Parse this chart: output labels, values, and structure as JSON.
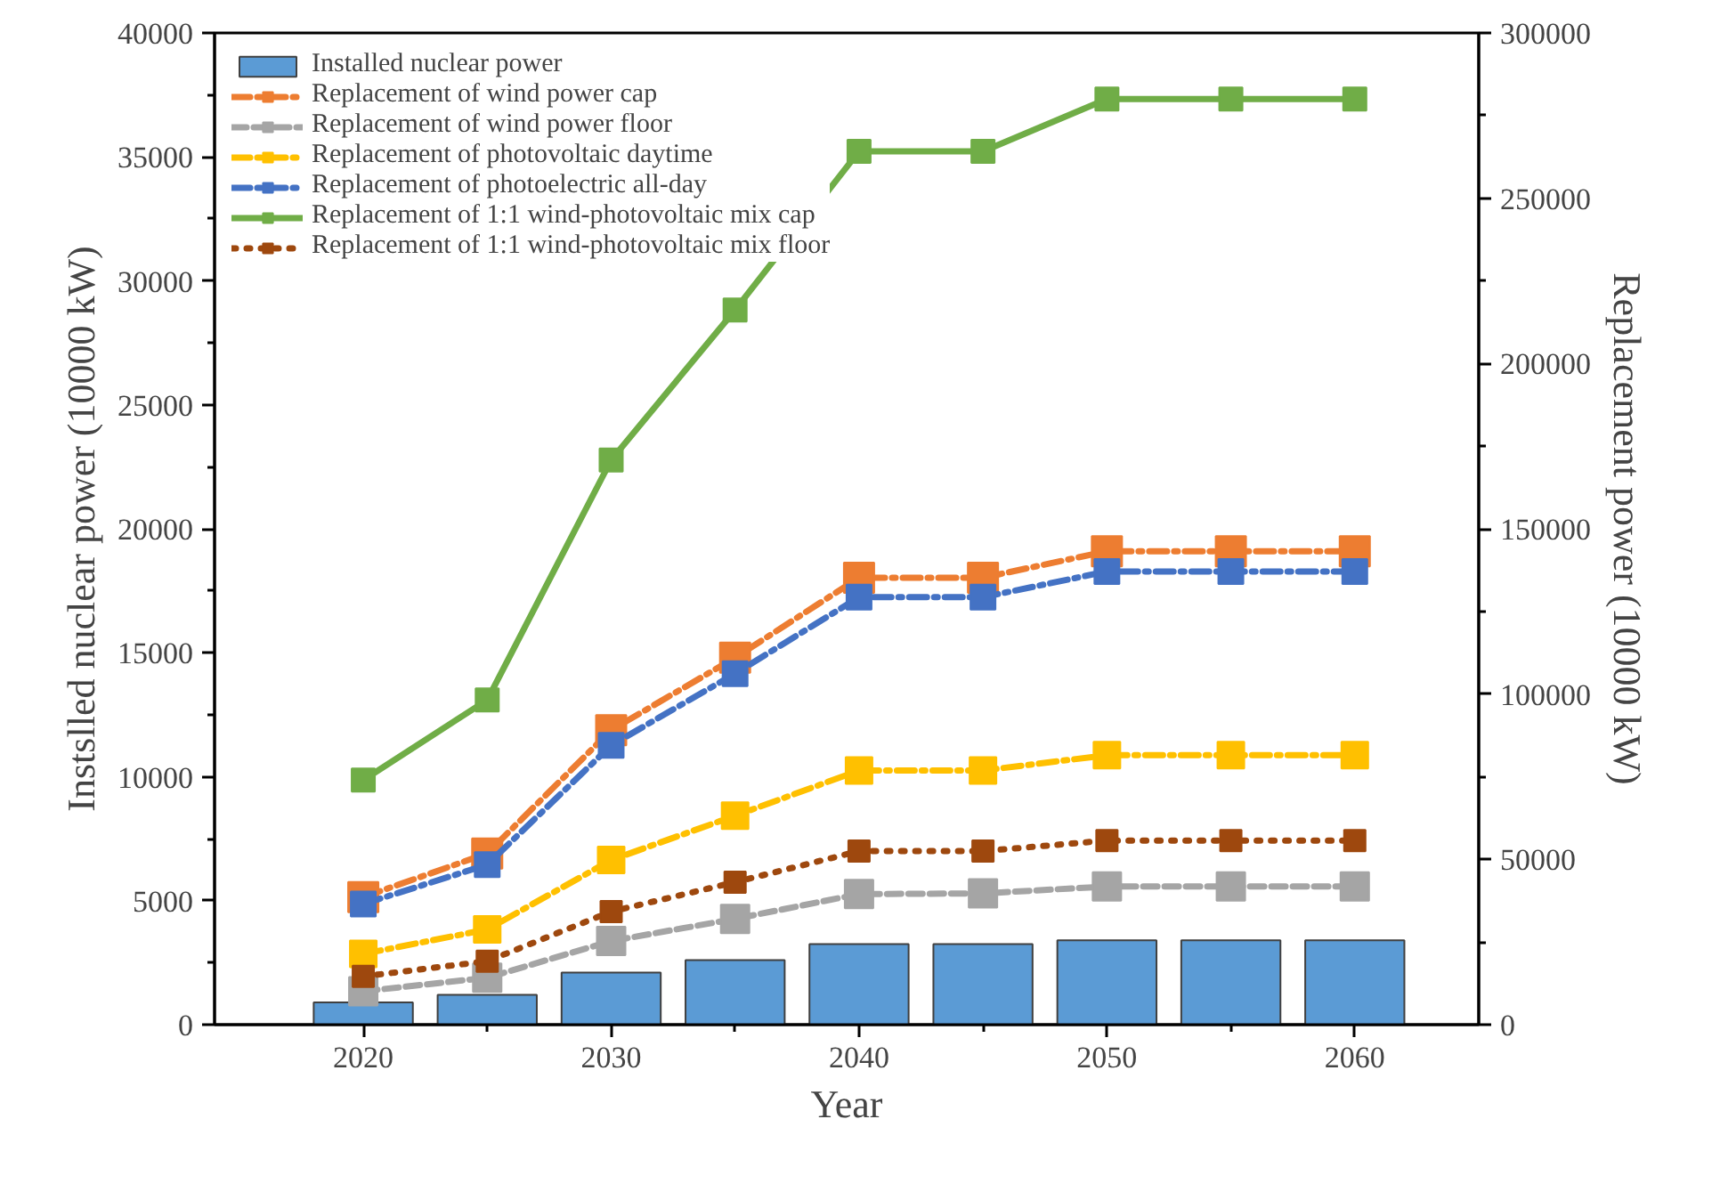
{
  "chart_data": {
    "type": "line",
    "xlabel": "Year",
    "ylabel": "Instslled nuclear power (10000 kW)",
    "y2label": "Replacement power (10000 kW)",
    "x": [
      2020,
      2025,
      2030,
      2035,
      2040,
      2045,
      2050,
      2055,
      2060
    ],
    "xlim": [
      2014,
      2065
    ],
    "xticks": [
      2020,
      {
        "value": 2025,
        "label": null
      },
      2030,
      {
        "value": 2035,
        "label": null
      },
      2040,
      {
        "value": 2045,
        "label": null
      },
      2050,
      {
        "value": 2055,
        "label": null
      },
      2060
    ],
    "ylim": [
      0,
      40000
    ],
    "yticks": [
      0,
      {
        "value": 2500,
        "label": null
      },
      5000,
      {
        "value": 7500,
        "label": null
      },
      10000,
      {
        "value": 12500,
        "label": null
      },
      15000,
      {
        "value": 17500,
        "label": null
      },
      20000,
      {
        "value": 22500,
        "label": null
      },
      25000,
      {
        "value": 27500,
        "label": null
      },
      30000,
      {
        "value": 32500,
        "label": null
      },
      35000,
      {
        "value": 37500,
        "label": null
      },
      40000
    ],
    "y2lim": [
      0,
      300000
    ],
    "y2ticks": [
      0,
      {
        "value": 25000,
        "label": null
      },
      50000,
      {
        "value": 75000,
        "label": null
      },
      100000,
      {
        "value": 125000,
        "label": null
      },
      150000,
      {
        "value": 175000,
        "label": null
      },
      200000,
      {
        "value": 225000,
        "label": null
      },
      250000,
      {
        "value": 275000,
        "label": null
      },
      300000
    ],
    "grid": false,
    "legend": "top left",
    "marker": "square",
    "series": [
      {
        "name": "Installed nuclear power",
        "type": "bar",
        "color": "#5b9bd5",
        "values": [
          900,
          1200,
          2100,
          2600,
          3250,
          3250,
          3400,
          3400,
          3400
        ]
      },
      {
        "name": "Replacement of wind power cap",
        "axis": "y2",
        "color": "#ed7d31",
        "line_style": "dashdot",
        "values": [
          38600,
          51800,
          89100,
          111000,
          135200,
          135200,
          143200,
          143200,
          143200
        ]
      },
      {
        "name": "Replacement of wind power floor",
        "axis": "y2",
        "color": "#a5a5a5",
        "line_style": "dashed",
        "values": [
          10100,
          14200,
          25300,
          32000,
          39500,
          39700,
          41800,
          41800,
          41800
        ]
      },
      {
        "name": "Replacement of photovoltaic daytime",
        "axis": "y2",
        "color": "#ffc000",
        "line_style": "dashdot",
        "values": [
          21400,
          28800,
          49800,
          63200,
          76900,
          76900,
          81500,
          81500,
          81500
        ]
      },
      {
        "name": "Replacement of photoelectric all-day",
        "axis": "y2",
        "color": "#4472c4",
        "line_style": "dashdot",
        "values": [
          36500,
          48400,
          84500,
          106200,
          129300,
          129300,
          137100,
          137100,
          137100
        ]
      },
      {
        "name": "Replacement of 1:1 wind-photovoltaic mix cap",
        "axis": "y2",
        "color": "#70ad47",
        "line_style": "solid",
        "values": [
          74000,
          98200,
          170800,
          216200,
          264200,
          264200,
          280000,
          280000,
          280000
        ]
      },
      {
        "name": "Replacement of 1:1 wind-photovoltaic mix floor",
        "axis": "y2",
        "color": "#9e480e",
        "line_style": "dotted",
        "values": [
          14600,
          19200,
          34200,
          43100,
          52500,
          52500,
          55700,
          55700,
          55700
        ]
      }
    ]
  }
}
